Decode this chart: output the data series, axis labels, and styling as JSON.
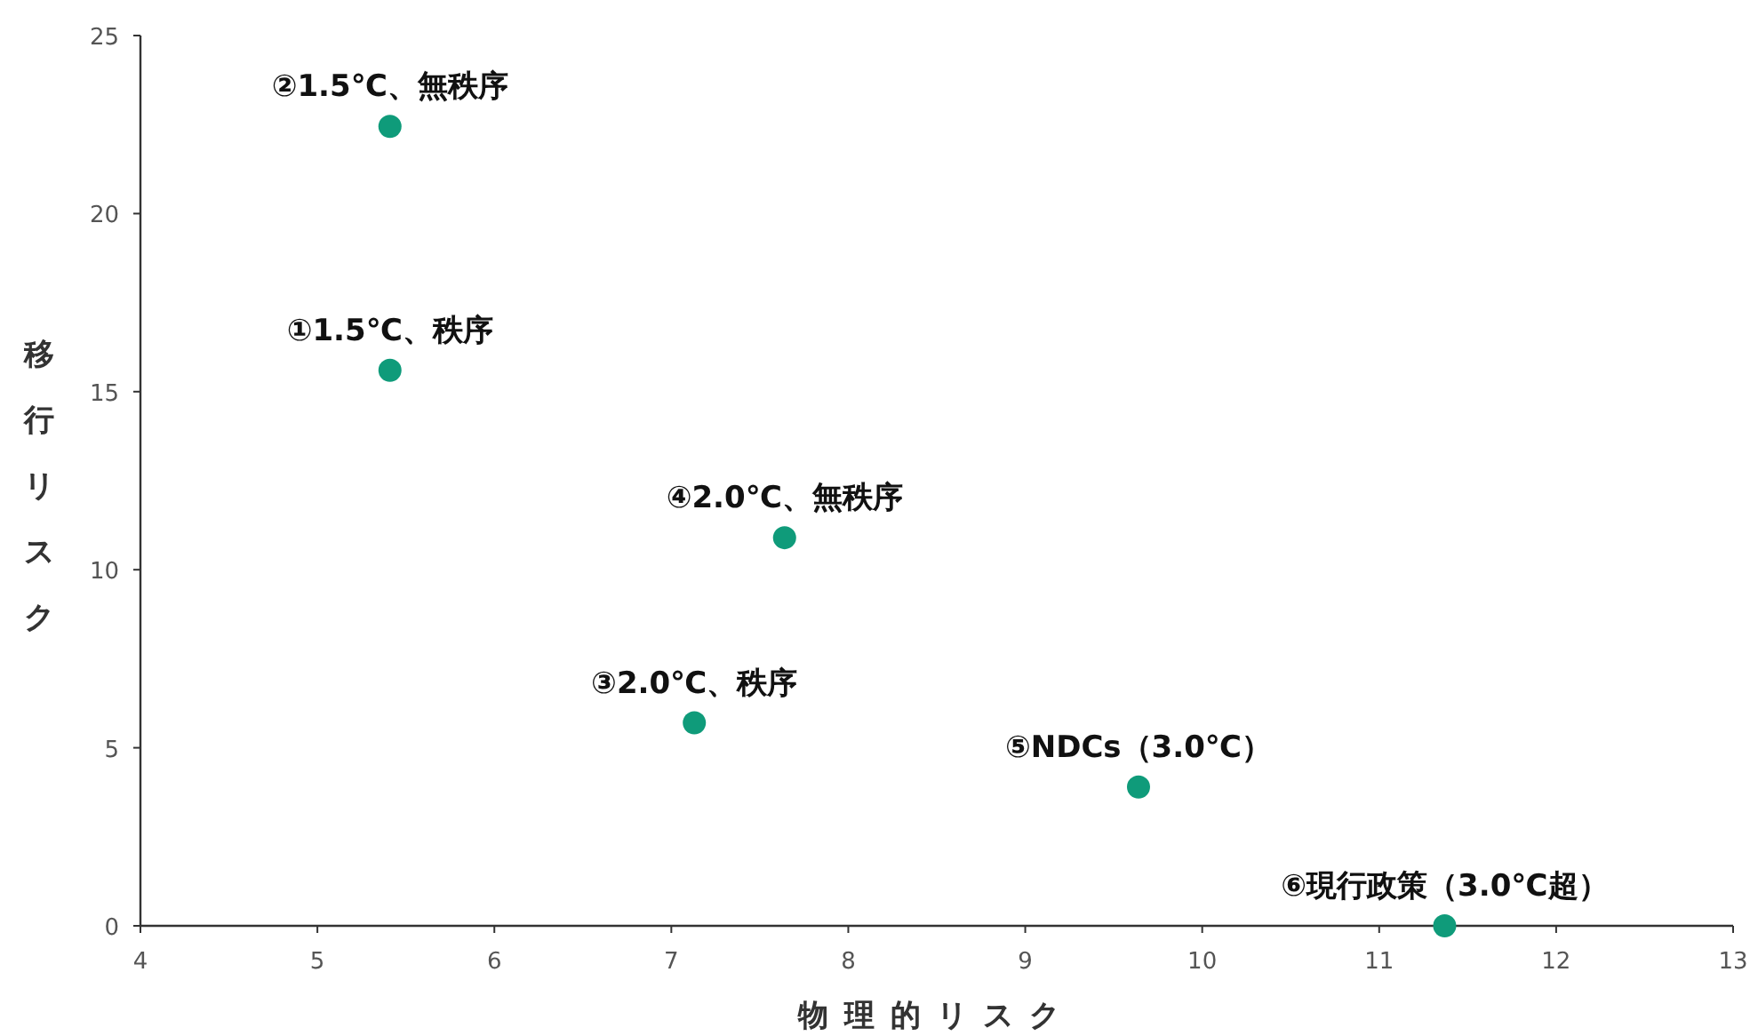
{
  "chart_data": {
    "type": "scatter",
    "xlabel": "物理的リスク",
    "ylabel": "移行リスク",
    "x": [
      5.41,
      5.41,
      7.13,
      7.64,
      9.64,
      11.37
    ],
    "series": [
      {
        "color": "#0f9b7a",
        "values": [
          15.6,
          22.45,
          5.7,
          10.9,
          3.9,
          0
        ]
      }
    ],
    "xlim": [
      4,
      13
    ],
    "xticks": [
      4,
      5,
      6,
      7,
      8,
      9,
      10,
      11,
      12,
      13
    ],
    "ylim": [
      0,
      25
    ],
    "yticks": [
      0,
      5,
      10,
      15,
      20,
      25
    ],
    "marker": "circle",
    "grid": false,
    "annotations": [
      {
        "text": "①1.5℃、秩序",
        "x": 5.41,
        "y": 15.6
      },
      {
        "text": "②1.5℃、無秩序",
        "x": 5.41,
        "y": 22.45
      },
      {
        "text": "③2.0℃、秩序",
        "x": 7.13,
        "y": 5.7
      },
      {
        "text": "④2.0℃、無秩序",
        "x": 7.64,
        "y": 10.9
      },
      {
        "text": "⑤NDCs（3.0℃）",
        "x": 9.64,
        "y": 3.9
      },
      {
        "text": "⑥現行政策（3.0℃超）",
        "x": 11.37,
        "y": 0
      }
    ]
  }
}
